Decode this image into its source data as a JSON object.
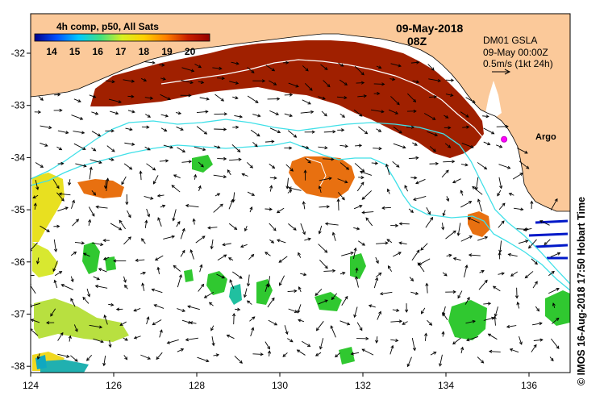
{
  "title": {
    "date": "09-May-2018",
    "time": "08Z"
  },
  "colorbar": {
    "caption": "4h comp, p50, All Sats",
    "ticks": [
      "14",
      "15",
      "16",
      "17",
      "18",
      "19",
      "20"
    ],
    "stops": [
      "#00008b",
      "#0050ff",
      "#00c8ff",
      "#40e080",
      "#d8f020",
      "#ffd000",
      "#ff8000",
      "#c81e00",
      "#960000"
    ]
  },
  "info": {
    "product": "DM01 GSLA",
    "valid": "09-May 00:00Z",
    "scale": "0.5m/s (1kt 24h)"
  },
  "argo": {
    "label": "Argo",
    "lon": 135.4,
    "lat": -33.65
  },
  "credit": "© IMOS 16-Aug-2018 17:50 Hobart Time",
  "axes": {
    "x_ticks": [
      "124",
      "126",
      "128",
      "130",
      "132",
      "134",
      "136"
    ],
    "y_ticks": [
      "-32",
      "-33",
      "-34",
      "-35",
      "-36",
      "-37",
      "-38"
    ]
  },
  "colors": {
    "land": "#fbc99a",
    "current_contour": "#40e0e8",
    "hot_sst": "#a02000",
    "warm_sst": "#e87010"
  }
}
